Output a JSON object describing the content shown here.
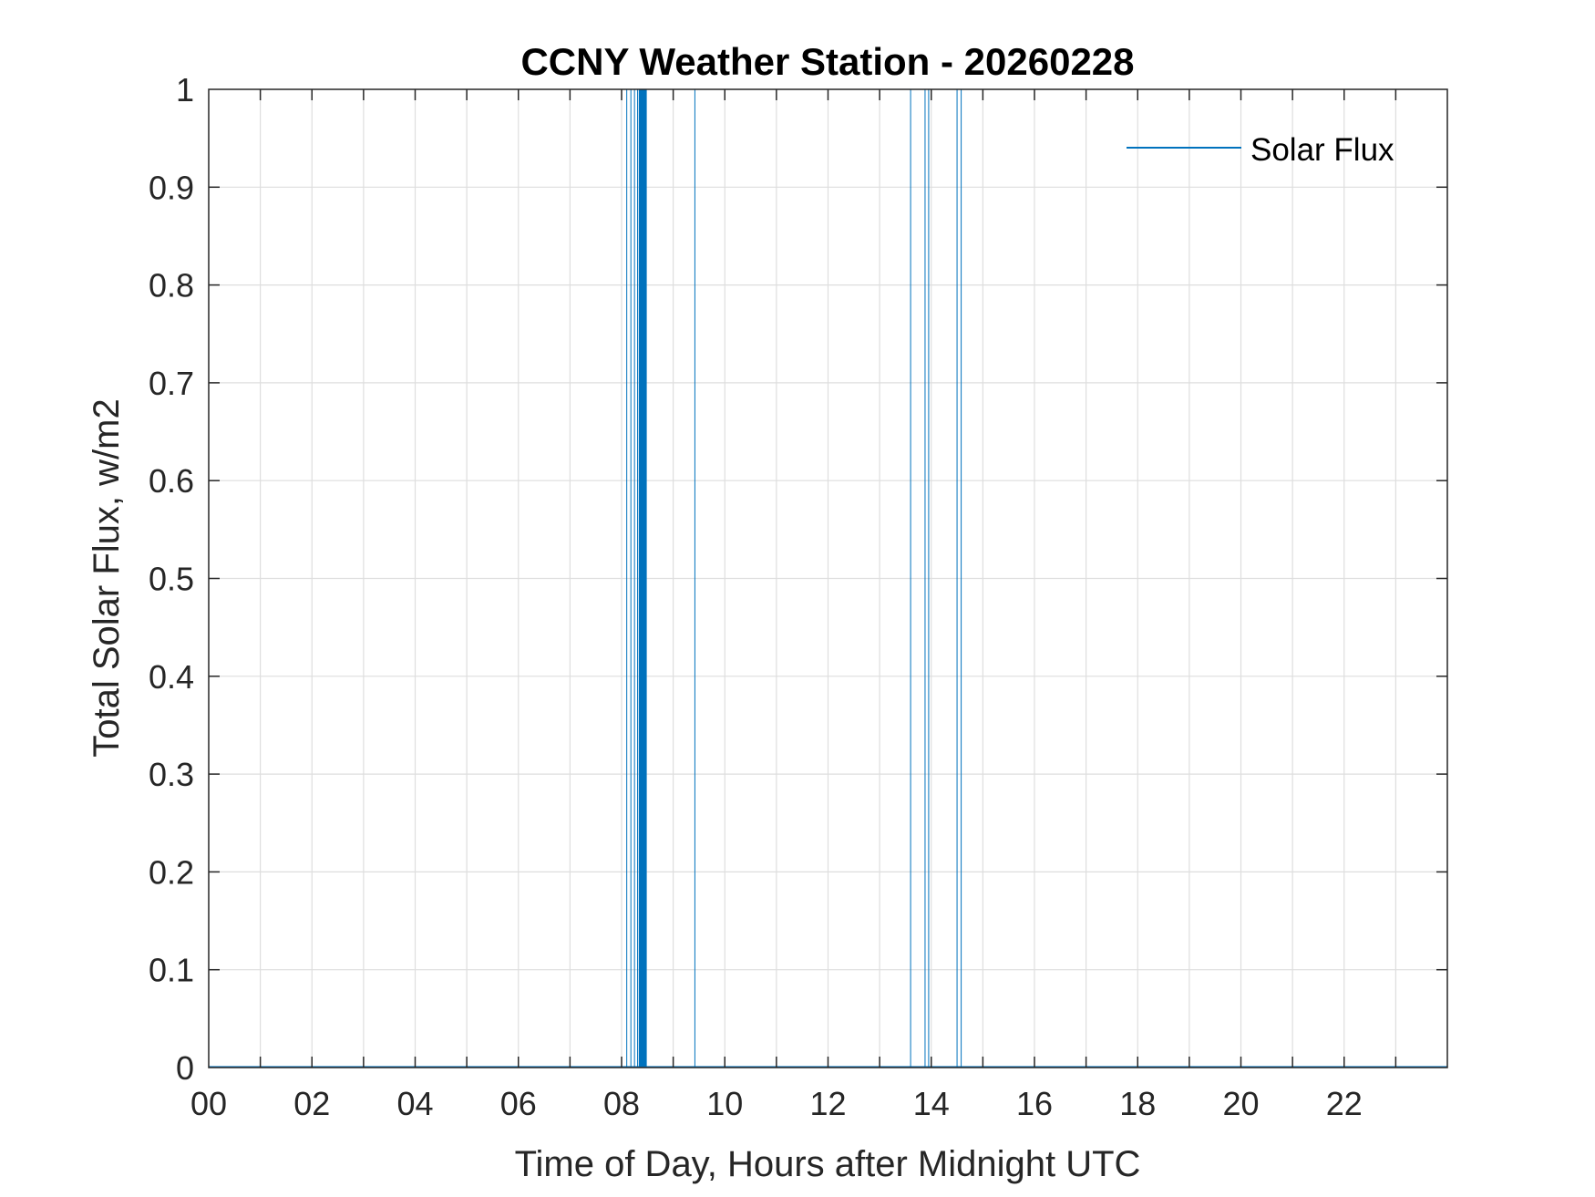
{
  "chart_data": {
    "type": "line",
    "title": "CCNY Weather Station - 20260228",
    "xlabel": "Time of Day, Hours after Midnight UTC",
    "ylabel": "Total Solar Flux, w/m2",
    "xlim": [
      0,
      24
    ],
    "ylim": [
      0,
      1
    ],
    "x_ticks": [
      0,
      2,
      4,
      6,
      8,
      10,
      12,
      14,
      16,
      18,
      20,
      22
    ],
    "x_tick_labels": [
      "00",
      "02",
      "04",
      "06",
      "08",
      "10",
      "12",
      "14",
      "16",
      "18",
      "20",
      "22"
    ],
    "x_minor_grid_step": 1,
    "y_ticks": [
      0,
      0.1,
      0.2,
      0.3,
      0.4,
      0.5,
      0.6,
      0.7,
      0.8,
      0.9,
      1
    ],
    "y_tick_labels": [
      "0",
      "0.1",
      "0.2",
      "0.3",
      "0.4",
      "0.5",
      "0.6",
      "0.7",
      "0.8",
      "0.9",
      "1"
    ],
    "grid": true,
    "legend_position": "top-right",
    "series": [
      {
        "name": "Solar Flux",
        "color": "#0072BD",
        "spikes": [
          {
            "x": 8.1,
            "y": 1,
            "width": 1
          },
          {
            "x": 8.18,
            "y": 1,
            "width": 1
          },
          {
            "x": 8.25,
            "y": 1,
            "width": 1
          },
          {
            "x": 8.31,
            "y": 1,
            "width": 1
          },
          {
            "x": 8.35,
            "y": 1,
            "width": 2
          },
          {
            "x": 8.38,
            "y": 1,
            "width": 4
          },
          {
            "x": 8.43,
            "y": 1,
            "width": 4
          },
          {
            "x": 8.47,
            "y": 1,
            "width": 2
          },
          {
            "x": 9.42,
            "y": 1,
            "width": 1
          },
          {
            "x": 13.6,
            "y": 1,
            "width": 1
          },
          {
            "x": 13.88,
            "y": 1,
            "width": 1
          },
          {
            "x": 13.95,
            "y": 1,
            "width": 1
          },
          {
            "x": 14.5,
            "y": 1,
            "width": 1
          },
          {
            "x": 14.58,
            "y": 1,
            "width": 1
          }
        ]
      }
    ]
  }
}
